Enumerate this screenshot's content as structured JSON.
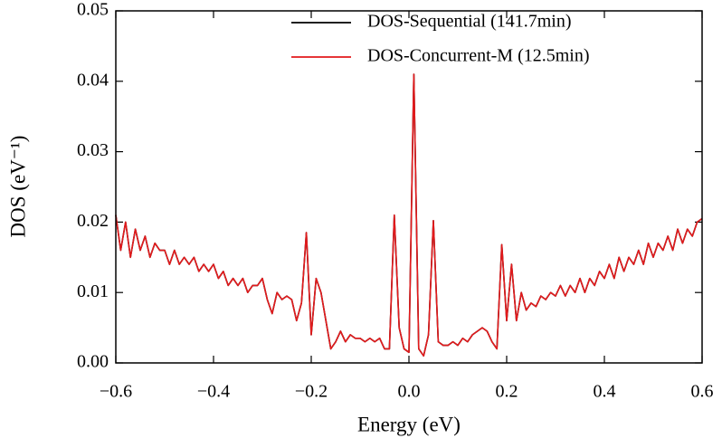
{
  "chart_data": {
    "type": "line",
    "xlabel": "Energy (eV)",
    "ylabel": "DOS (eV⁻¹)",
    "legend": "upper right",
    "x": [
      -0.6,
      -0.59,
      -0.58,
      -0.57,
      -0.56,
      -0.55,
      -0.54,
      -0.53,
      -0.52,
      -0.51,
      -0.5,
      -0.49,
      -0.48,
      -0.47,
      -0.46,
      -0.45,
      -0.44,
      -0.43,
      -0.42,
      -0.41,
      -0.4,
      -0.39,
      -0.38,
      -0.37,
      -0.36,
      -0.35,
      -0.34,
      -0.33,
      -0.32,
      -0.31,
      -0.3,
      -0.29,
      -0.28,
      -0.27,
      -0.26,
      -0.25,
      -0.24,
      -0.23,
      -0.22,
      -0.21,
      -0.2,
      -0.19,
      -0.18,
      -0.17,
      -0.16,
      -0.15,
      -0.14,
      -0.13,
      -0.12,
      -0.11,
      -0.1,
      -0.09,
      -0.08,
      -0.07,
      -0.06,
      -0.05,
      -0.04,
      -0.03,
      -0.02,
      -0.01,
      0,
      0.01,
      0.02,
      0.03,
      0.04,
      0.05,
      0.06,
      0.07,
      0.08,
      0.09,
      0.1,
      0.11,
      0.12,
      0.13,
      0.14,
      0.15,
      0.16,
      0.17,
      0.18,
      0.19,
      0.2,
      0.21,
      0.22,
      0.23,
      0.24,
      0.25,
      0.26,
      0.27,
      0.28,
      0.29,
      0.3,
      0.31,
      0.32,
      0.33,
      0.34,
      0.35,
      0.36,
      0.37,
      0.38,
      0.39,
      0.4,
      0.41,
      0.42,
      0.43,
      0.44,
      0.45,
      0.46,
      0.47,
      0.48,
      0.49,
      0.5,
      0.51,
      0.52,
      0.53,
      0.54,
      0.55,
      0.56,
      0.57,
      0.58,
      0.59,
      0.6
    ],
    "series": [
      {
        "name": "DOS-Sequential (141.7min)",
        "color": "#000000",
        "values": [
          0.021,
          0.016,
          0.02,
          0.015,
          0.019,
          0.016,
          0.018,
          0.015,
          0.017,
          0.016,
          0.016,
          0.014,
          0.016,
          0.014,
          0.015,
          0.014,
          0.015,
          0.013,
          0.014,
          0.013,
          0.014,
          0.012,
          0.013,
          0.011,
          0.012,
          0.011,
          0.012,
          0.01,
          0.011,
          0.011,
          0.012,
          0.009,
          0.007,
          0.01,
          0.009,
          0.0095,
          0.009,
          0.006,
          0.0085,
          0.0185,
          0.004,
          0.012,
          0.01,
          0.006,
          0.002,
          0.003,
          0.0045,
          0.003,
          0.004,
          0.0035,
          0.0035,
          0.003,
          0.0035,
          0.003,
          0.0035,
          0.002,
          0.002,
          0.021,
          0.005,
          0.002,
          0.0015,
          0.041,
          0.002,
          0.001,
          0.004,
          0.0202,
          0.003,
          0.0025,
          0.0025,
          0.003,
          0.0025,
          0.0035,
          0.003,
          0.004,
          0.0045,
          0.005,
          0.0045,
          0.003,
          0.002,
          0.0168,
          0.006,
          0.014,
          0.006,
          0.01,
          0.0075,
          0.0085,
          0.008,
          0.0095,
          0.009,
          0.01,
          0.0095,
          0.011,
          0.0095,
          0.011,
          0.01,
          0.012,
          0.01,
          0.012,
          0.011,
          0.013,
          0.012,
          0.014,
          0.012,
          0.015,
          0.013,
          0.015,
          0.014,
          0.016,
          0.014,
          0.017,
          0.015,
          0.017,
          0.016,
          0.018,
          0.016,
          0.019,
          0.017,
          0.019,
          0.018,
          0.02,
          0.0205
        ]
      },
      {
        "name": "DOS-Concurrent-M (12.5min)",
        "color": "#e31a1c",
        "values": [
          0.021,
          0.016,
          0.02,
          0.015,
          0.019,
          0.016,
          0.018,
          0.015,
          0.017,
          0.016,
          0.016,
          0.014,
          0.016,
          0.014,
          0.015,
          0.014,
          0.015,
          0.013,
          0.014,
          0.013,
          0.014,
          0.012,
          0.013,
          0.011,
          0.012,
          0.011,
          0.012,
          0.01,
          0.011,
          0.011,
          0.012,
          0.009,
          0.007,
          0.01,
          0.009,
          0.0095,
          0.009,
          0.006,
          0.0085,
          0.0185,
          0.004,
          0.012,
          0.01,
          0.006,
          0.002,
          0.003,
          0.0045,
          0.003,
          0.004,
          0.0035,
          0.0035,
          0.003,
          0.0035,
          0.003,
          0.0035,
          0.002,
          0.002,
          0.021,
          0.005,
          0.002,
          0.0015,
          0.041,
          0.002,
          0.001,
          0.004,
          0.0202,
          0.003,
          0.0025,
          0.0025,
          0.003,
          0.0025,
          0.0035,
          0.003,
          0.004,
          0.0045,
          0.005,
          0.0045,
          0.003,
          0.002,
          0.0168,
          0.006,
          0.014,
          0.006,
          0.01,
          0.0075,
          0.0085,
          0.008,
          0.0095,
          0.009,
          0.01,
          0.0095,
          0.011,
          0.0095,
          0.011,
          0.01,
          0.012,
          0.01,
          0.012,
          0.011,
          0.013,
          0.012,
          0.014,
          0.012,
          0.015,
          0.013,
          0.015,
          0.014,
          0.016,
          0.014,
          0.017,
          0.015,
          0.017,
          0.016,
          0.018,
          0.016,
          0.019,
          0.017,
          0.019,
          0.018,
          0.02,
          0.0205
        ]
      }
    ],
    "xlim": [
      -0.6,
      0.6
    ],
    "xticks": [
      {
        "value": -0.6,
        "label": "−0.6"
      },
      {
        "value": -0.4,
        "label": "−0.4"
      },
      {
        "value": -0.2,
        "label": "−0.2"
      },
      {
        "value": 0,
        "label": "0.0"
      },
      0.2,
      0.4,
      0.6
    ],
    "ylim": [
      0,
      0.05
    ],
    "yticks": [
      {
        "value": 0,
        "label": "0.00"
      },
      0.01,
      0.02,
      0.03,
      0.04,
      0.05
    ],
    "grid": false
  }
}
